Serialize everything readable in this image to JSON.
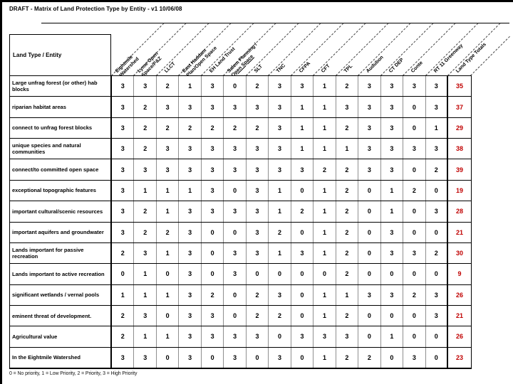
{
  "page": {
    "title": "DRAFT - Matrix of Land Protection Type by Entity - v1 10/06/08",
    "corner_header": "Land Type / Entity",
    "footer_legend": "0 = No priority, 1 = Low Priority, 2 = Priority, 3 = High Priority",
    "totals_color": "#c00000"
  },
  "matrix": {
    "columns": [
      {
        "label": "Eightmile Watershed",
        "lines": [
          "Eightmile",
          "Watershed"
        ]
      },
      {
        "label": "Lyme Open Space/P&Z",
        "lines": [
          "Lyme Open",
          "Space/P&Z"
        ]
      },
      {
        "label": "LLCT",
        "lines": [
          "LLCT"
        ]
      },
      {
        "label": "East Haddam Plan/Open Space",
        "lines": [
          "East Haddam",
          "Plan/Open Space"
        ]
      },
      {
        "label": "EH Land Trust",
        "lines": [
          "EH Land Trust"
        ]
      },
      {
        "label": "Salem Planning / Open Space",
        "lines": [
          "Salem Planning /",
          "Open Space"
        ],
        "underline_line": 1
      },
      {
        "label": "SLT",
        "lines": [
          "SLT"
        ]
      },
      {
        "label": "TNC",
        "lines": [
          "TNC"
        ]
      },
      {
        "label": "CFPA",
        "lines": [
          "CFPA"
        ]
      },
      {
        "label": "CFT",
        "lines": [
          "CFT"
        ]
      },
      {
        "label": "TPL",
        "lines": [
          "TPL"
        ]
      },
      {
        "label": "Audubon",
        "lines": [
          "Audubon"
        ]
      },
      {
        "label": "CT DEP",
        "lines": [
          "CT DEP"
        ]
      },
      {
        "label": "Conte",
        "lines": [
          "Conte"
        ]
      },
      {
        "label": "RT 11 Greenway",
        "lines": [
          "RT 11 Greenway"
        ]
      }
    ],
    "totals_column": {
      "label": "Land Type Totals",
      "lines": [
        "Land Type Totals"
      ]
    },
    "rows": [
      {
        "label": "Large unfrag forest (or other) hab blocks",
        "values": [
          3,
          3,
          2,
          1,
          3,
          0,
          2,
          3,
          3,
          1,
          2,
          3,
          3,
          3,
          3
        ],
        "total": 35
      },
      {
        "label": "riparian habitat areas",
        "values": [
          3,
          2,
          3,
          3,
          3,
          3,
          3,
          3,
          1,
          1,
          3,
          3,
          3,
          0,
          3
        ],
        "total": 37
      },
      {
        "label": "connect to unfrag forest blocks",
        "values": [
          3,
          2,
          2,
          2,
          2,
          2,
          2,
          3,
          1,
          1,
          2,
          3,
          3,
          0,
          1
        ],
        "total": 29
      },
      {
        "label": "unique species and natural communities",
        "values": [
          3,
          2,
          3,
          3,
          3,
          3,
          3,
          3,
          1,
          1,
          1,
          3,
          3,
          3,
          3
        ],
        "total": 38
      },
      {
        "label": "connect/to committed open space",
        "values": [
          3,
          3,
          3,
          3,
          3,
          3,
          3,
          3,
          3,
          2,
          2,
          3,
          3,
          0,
          2
        ],
        "total": 39
      },
      {
        "label": "exceptional topographic features",
        "values": [
          3,
          1,
          1,
          1,
          3,
          0,
          3,
          1,
          0,
          1,
          2,
          0,
          1,
          2,
          0
        ],
        "total": 19
      },
      {
        "label": "important cultural/scenic resources",
        "values": [
          3,
          2,
          1,
          3,
          3,
          3,
          3,
          1,
          2,
          1,
          2,
          0,
          1,
          0,
          3
        ],
        "total": 28
      },
      {
        "label": "important aquifers and groundwater",
        "values": [
          3,
          2,
          2,
          3,
          0,
          0,
          3,
          2,
          0,
          1,
          2,
          0,
          3,
          0,
          0
        ],
        "total": 21
      },
      {
        "label": "Lands important for passive recreation",
        "values": [
          2,
          3,
          1,
          3,
          0,
          3,
          3,
          1,
          3,
          1,
          2,
          0,
          3,
          3,
          2
        ],
        "total": 30
      },
      {
        "label": "Lands important to active recreation",
        "values": [
          0,
          1,
          0,
          3,
          0,
          3,
          0,
          0,
          0,
          0,
          2,
          0,
          0,
          0,
          0
        ],
        "total": 9
      },
      {
        "label": "significant wetlands / vernal pools",
        "values": [
          1,
          1,
          1,
          3,
          2,
          0,
          2,
          3,
          0,
          1,
          1,
          3,
          3,
          2,
          3
        ],
        "total": 26
      },
      {
        "label": "eminent threat of development.",
        "values": [
          2,
          3,
          0,
          3,
          3,
          0,
          2,
          2,
          0,
          1,
          2,
          0,
          0,
          0,
          3
        ],
        "total": 21
      },
      {
        "label": "Agricultural value",
        "values": [
          2,
          1,
          1,
          3,
          3,
          3,
          3,
          0,
          3,
          3,
          3,
          0,
          1,
          0,
          0
        ],
        "total": 26
      },
      {
        "label": "In the Eightmile Watershed",
        "values": [
          3,
          3,
          0,
          3,
          0,
          3,
          0,
          3,
          0,
          1,
          2,
          2,
          0,
          3,
          0
        ],
        "total": 23
      }
    ]
  }
}
